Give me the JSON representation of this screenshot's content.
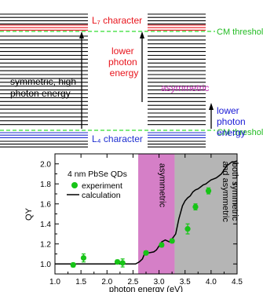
{
  "diagram": {
    "left_column_top_label": "L₇ character",
    "left_column_bottom_label": "L₄ character",
    "cm_threshold_label": "CM threshold",
    "left_arrow_text": [
      "symmetric, high",
      "photon energy"
    ],
    "middle_up_arrow_text": [
      "lower",
      "photon",
      "energy"
    ],
    "middle_label_asymmetric": "asymmetric",
    "right_arrow_text": [
      "lower",
      "photon",
      "energy"
    ],
    "colors": {
      "red_levels": "#e8141c",
      "blue_levels": "#1e2fd0",
      "green_dashed": "#33dd33",
      "magenta_text": "#c22db5",
      "blue_text": "#1a1ad6",
      "red_text": "#e8141c",
      "green_text": "#22bb22"
    }
  },
  "chart_data": {
    "type": "scatter",
    "xlabel": "photon energy (eV)",
    "ylabel": "QY",
    "xlim": [
      1.0,
      4.5
    ],
    "ylim": [
      0.9,
      2.1
    ],
    "xticks": [
      "1.0",
      "1.5",
      "2.0",
      "2.5",
      "3.0",
      "3.5",
      "4.0",
      "4.5"
    ],
    "yticks": [
      "1.0",
      "1.2",
      "1.4",
      "1.6",
      "1.8",
      "2.0"
    ],
    "legend": {
      "title": "4 nm PbSe QDs",
      "placement": "top-left",
      "items": [
        "experiment",
        "calculation"
      ]
    },
    "regions": [
      {
        "label": "asymmetric",
        "x_range": [
          2.6,
          3.3
        ],
        "color": "#d57fc7"
      },
      {
        "label": "both symmetric and asymmetric",
        "x_range": [
          3.3,
          4.5
        ],
        "color": "#b5b5b5"
      }
    ],
    "series": [
      {
        "name": "experiment",
        "kind": "points",
        "color": "#17c417",
        "points": [
          {
            "x": 1.35,
            "y": 0.99,
            "err": 0.02
          },
          {
            "x": 1.55,
            "y": 1.06,
            "err": 0.04
          },
          {
            "x": 2.2,
            "y": 1.02,
            "err": 0.02
          },
          {
            "x": 2.3,
            "y": 1.01,
            "err": 0.04
          },
          {
            "x": 2.75,
            "y": 1.11,
            "err": 0.02
          },
          {
            "x": 3.05,
            "y": 1.19,
            "err": 0.02
          },
          {
            "x": 3.25,
            "y": 1.23,
            "err": 0.02
          },
          {
            "x": 3.55,
            "y": 1.35,
            "err": 0.05
          },
          {
            "x": 3.7,
            "y": 1.57,
            "err": 0.03
          },
          {
            "x": 3.95,
            "y": 1.73,
            "err": 0.03
          }
        ]
      },
      {
        "name": "calculation",
        "kind": "line",
        "color": "#000000",
        "x": [
          1.0,
          2.55,
          2.62,
          2.68,
          2.72,
          2.8,
          2.9,
          2.95,
          3.0,
          3.05,
          3.12,
          3.2,
          3.28,
          3.32,
          3.38,
          3.45,
          3.5,
          3.55,
          3.6,
          3.65,
          3.7,
          3.75,
          3.8,
          3.85,
          3.9,
          3.95,
          4.0,
          4.05,
          4.1,
          4.15,
          4.2,
          4.25,
          4.3,
          4.35,
          4.4,
          4.45,
          4.5
        ],
        "y": [
          1.0,
          1.0,
          1.02,
          1.05,
          1.1,
          1.11,
          1.12,
          1.14,
          1.18,
          1.22,
          1.24,
          1.22,
          1.27,
          1.3,
          1.45,
          1.58,
          1.63,
          1.66,
          1.68,
          1.72,
          1.74,
          1.75,
          1.77,
          1.79,
          1.8,
          1.82,
          1.84,
          1.85,
          1.86,
          1.88,
          1.9,
          1.94,
          1.98,
          2.0,
          2.02,
          2.02,
          2.03
        ]
      }
    ]
  }
}
